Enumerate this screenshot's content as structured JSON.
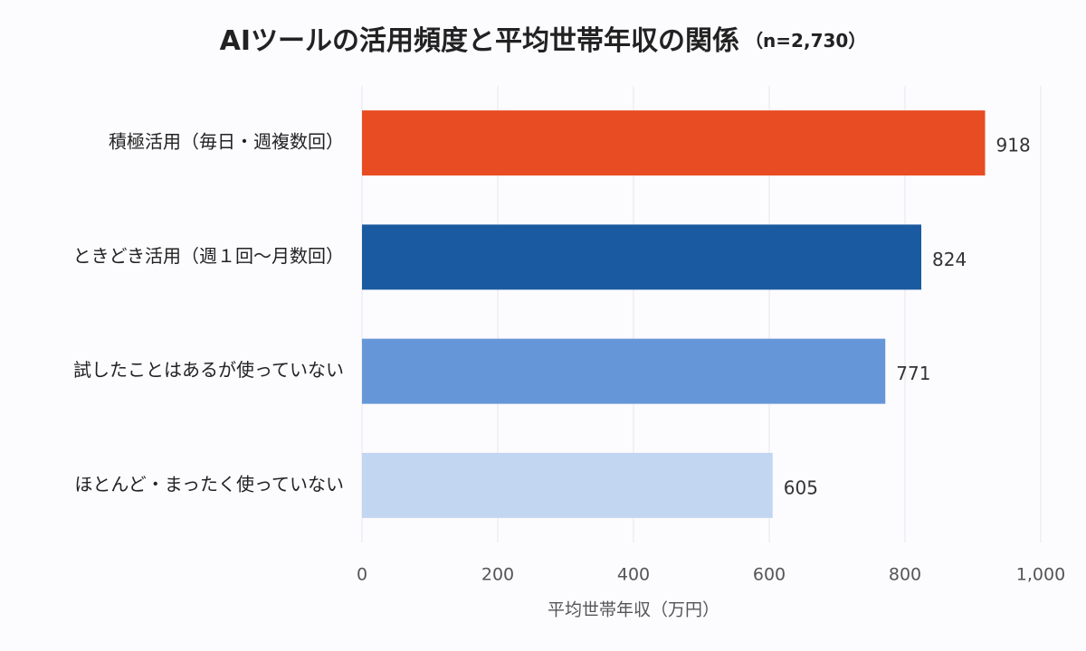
{
  "chart_data": {
    "type": "bar",
    "orientation": "horizontal",
    "title": "AIツールの活用頻度と平均世帯年収の関係",
    "subtitle": "（n=2,730）",
    "x_label": "平均世帯年収（万円）",
    "categories": [
      "積極活用（毎日・週複数回）",
      "ときどき活用（週１回〜月数回）",
      "試したことはあるが使っていない",
      "ほとんど・まったく使っていない"
    ],
    "values": [
      918,
      824,
      771,
      605
    ],
    "colors": [
      "#e84c22",
      "#1a5aa0",
      "#6596d7",
      "#c2d5f1"
    ],
    "xlim": [
      0,
      1000
    ],
    "xticks": [
      0,
      200,
      400,
      600,
      800,
      {
        "value": 1000,
        "label": "1,000"
      }
    ],
    "grid": true
  }
}
